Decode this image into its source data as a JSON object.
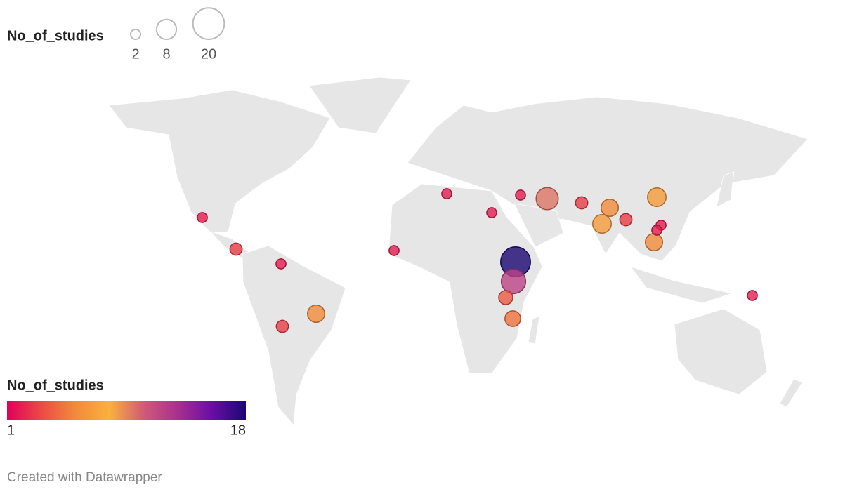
{
  "size_legend": {
    "title": "No_of_studies",
    "values": [
      2,
      8,
      20
    ]
  },
  "color_legend": {
    "title": "No_of_studies",
    "colorlim": [
      1,
      18
    ],
    "ticks": [
      1,
      18
    ],
    "colors": [
      "#e0005a",
      "#ec4a45",
      "#f28a3c",
      "#f9b13d",
      "#d05a78",
      "#a8308e",
      "#6a0ea6",
      "#1a0873"
    ]
  },
  "bubbles": {
    "values": [
      2,
      3,
      2,
      3,
      6,
      2,
      2,
      2,
      2,
      10,
      3,
      6,
      7,
      3,
      7,
      2,
      2,
      6,
      18,
      12,
      4,
      5,
      2
    ]
  },
  "footer": "Created with Datawrapper"
}
